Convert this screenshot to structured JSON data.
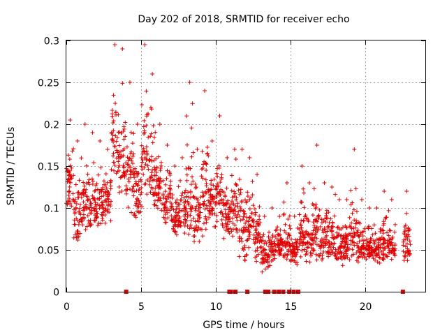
{
  "chart_data": {
    "type": "scatter",
    "title": "Day 202 of 2018, SRMTID for receiver echo",
    "xlabel": "GPS time / hours",
    "ylabel": "SRMTID / TECUs",
    "xlim": [
      0,
      24
    ],
    "ylim": [
      0,
      0.3
    ],
    "x_ticks": [
      "0",
      "5",
      "10",
      "15",
      "20"
    ],
    "y_ticks": [
      "0",
      "0.05",
      "0.1",
      "0.15",
      "0.2",
      "0.25",
      "0.3"
    ],
    "grid": true,
    "series": [
      {
        "name": "SRMTID",
        "marker": "plus",
        "color": "#e00000",
        "segments": [
          {
            "x0": 0.0,
            "x1": 0.5,
            "lo": 0.09,
            "hi": 0.205
          },
          {
            "x0": 0.5,
            "x1": 1.0,
            "lo": 0.05,
            "hi": 0.18
          },
          {
            "x0": 1.0,
            "x1": 1.5,
            "lo": 0.06,
            "hi": 0.2
          },
          {
            "x0": 1.5,
            "x1": 2.0,
            "lo": 0.06,
            "hi": 0.19
          },
          {
            "x0": 2.0,
            "x1": 2.5,
            "lo": 0.065,
            "hi": 0.18
          },
          {
            "x0": 2.5,
            "x1": 3.0,
            "lo": 0.08,
            "hi": 0.17
          },
          {
            "x0": 3.0,
            "x1": 3.5,
            "lo": 0.12,
            "hi": 0.295
          },
          {
            "x0": 3.5,
            "x1": 4.0,
            "lo": 0.1,
            "hi": 0.29
          },
          {
            "x0": 4.0,
            "x1": 4.5,
            "lo": 0.09,
            "hi": 0.25
          },
          {
            "x0": 4.5,
            "x1": 5.0,
            "lo": 0.08,
            "hi": 0.2
          },
          {
            "x0": 5.0,
            "x1": 5.5,
            "lo": 0.1,
            "hi": 0.295
          },
          {
            "x0": 5.5,
            "x1": 6.0,
            "lo": 0.09,
            "hi": 0.26
          },
          {
            "x0": 6.0,
            "x1": 6.5,
            "lo": 0.09,
            "hi": 0.2
          },
          {
            "x0": 6.5,
            "x1": 7.0,
            "lo": 0.08,
            "hi": 0.175
          },
          {
            "x0": 7.0,
            "x1": 7.5,
            "lo": 0.06,
            "hi": 0.15
          },
          {
            "x0": 7.5,
            "x1": 8.0,
            "lo": 0.06,
            "hi": 0.16
          },
          {
            "x0": 8.0,
            "x1": 8.5,
            "lo": 0.05,
            "hi": 0.25
          },
          {
            "x0": 8.5,
            "x1": 9.0,
            "lo": 0.05,
            "hi": 0.17
          },
          {
            "x0": 9.0,
            "x1": 9.5,
            "lo": 0.06,
            "hi": 0.24
          },
          {
            "x0": 9.5,
            "x1": 10.0,
            "lo": 0.07,
            "hi": 0.18
          },
          {
            "x0": 10.0,
            "x1": 10.5,
            "lo": 0.07,
            "hi": 0.21
          },
          {
            "x0": 10.5,
            "x1": 11.0,
            "lo": 0.06,
            "hi": 0.16
          },
          {
            "x0": 11.0,
            "x1": 11.5,
            "lo": 0.06,
            "hi": 0.17
          },
          {
            "x0": 11.5,
            "x1": 12.0,
            "lo": 0.03,
            "hi": 0.17
          },
          {
            "x0": 12.0,
            "x1": 12.5,
            "lo": 0.04,
            "hi": 0.16
          },
          {
            "x0": 12.5,
            "x1": 13.0,
            "lo": 0.03,
            "hi": 0.14
          },
          {
            "x0": 13.0,
            "x1": 13.5,
            "lo": 0.02,
            "hi": 0.09
          },
          {
            "x0": 13.5,
            "x1": 14.0,
            "lo": 0.03,
            "hi": 0.1
          },
          {
            "x0": 14.0,
            "x1": 14.5,
            "lo": 0.04,
            "hi": 0.09
          },
          {
            "x0": 14.5,
            "x1": 15.0,
            "lo": 0.03,
            "hi": 0.13
          },
          {
            "x0": 15.0,
            "x1": 15.5,
            "lo": 0.03,
            "hi": 0.09
          },
          {
            "x0": 15.5,
            "x1": 16.0,
            "lo": 0.03,
            "hi": 0.15
          },
          {
            "x0": 16.0,
            "x1": 16.5,
            "lo": 0.03,
            "hi": 0.13
          },
          {
            "x0": 16.5,
            "x1": 17.0,
            "lo": 0.03,
            "hi": 0.175
          },
          {
            "x0": 17.0,
            "x1": 17.5,
            "lo": 0.03,
            "hi": 0.13
          },
          {
            "x0": 17.5,
            "x1": 18.0,
            "lo": 0.03,
            "hi": 0.125
          },
          {
            "x0": 18.0,
            "x1": 18.5,
            "lo": 0.03,
            "hi": 0.11
          },
          {
            "x0": 18.5,
            "x1": 19.0,
            "lo": 0.03,
            "hi": 0.11
          },
          {
            "x0": 19.0,
            "x1": 19.5,
            "lo": 0.03,
            "hi": 0.17
          },
          {
            "x0": 19.5,
            "x1": 20.0,
            "lo": 0.03,
            "hi": 0.11
          },
          {
            "x0": 20.0,
            "x1": 20.5,
            "lo": 0.03,
            "hi": 0.1
          },
          {
            "x0": 20.5,
            "x1": 21.0,
            "lo": 0.03,
            "hi": 0.1
          },
          {
            "x0": 21.0,
            "x1": 21.5,
            "lo": 0.03,
            "hi": 0.12
          },
          {
            "x0": 21.5,
            "x1": 22.0,
            "lo": 0.03,
            "hi": 0.11
          },
          {
            "x0": 22.5,
            "x1": 23.0,
            "lo": 0.03,
            "hi": 0.12
          }
        ],
        "zero_values_x": [
          4.0,
          10.9,
          11.0,
          11.3,
          12.1,
          13.3,
          13.5,
          13.9,
          14.2,
          14.5,
          14.9,
          15.2,
          15.5,
          22.5
        ]
      }
    ]
  }
}
